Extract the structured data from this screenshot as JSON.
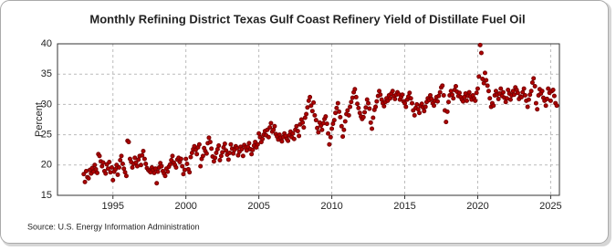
{
  "chart_data": {
    "type": "scatter",
    "title": "Monthly Refining District Texas Gulf Coast Refinery Yield of Distillate Fuel Oil",
    "y_label": "Percent",
    "source": "Source: U.S. Energy Information Administration",
    "color": "#b00000",
    "grid": true,
    "xlim": [
      1991.2,
      2025.6
    ],
    "ylim": [
      15,
      40
    ],
    "xticks": [
      1995,
      2000,
      2005,
      2010,
      2015,
      2020,
      2025
    ],
    "yticks": [
      15,
      20,
      25,
      30,
      35,
      40
    ],
    "x": [
      1993.0,
      1993.08,
      1993.17,
      1993.25,
      1993.33,
      1993.42,
      1993.5,
      1993.58,
      1993.67,
      1993.75,
      1993.83,
      1993.92,
      1994.0,
      1994.08,
      1994.17,
      1994.25,
      1994.33,
      1994.42,
      1994.5,
      1994.58,
      1994.67,
      1994.75,
      1994.83,
      1994.92,
      1995.0,
      1995.08,
      1995.17,
      1995.25,
      1995.33,
      1995.42,
      1995.5,
      1995.58,
      1995.67,
      1995.75,
      1995.83,
      1995.92,
      1996.0,
      1996.08,
      1996.17,
      1996.25,
      1996.33,
      1996.42,
      1996.5,
      1996.58,
      1996.67,
      1996.75,
      1996.83,
      1996.92,
      1997.0,
      1997.08,
      1997.17,
      1997.25,
      1997.33,
      1997.42,
      1997.5,
      1997.58,
      1997.67,
      1997.75,
      1997.83,
      1997.92,
      1998.0,
      1998.08,
      1998.17,
      1998.25,
      1998.33,
      1998.42,
      1998.5,
      1998.58,
      1998.67,
      1998.75,
      1998.83,
      1998.92,
      1999.0,
      1999.08,
      1999.17,
      1999.25,
      1999.33,
      1999.42,
      1999.5,
      1999.58,
      1999.67,
      1999.75,
      1999.83,
      1999.92,
      2000.0,
      2000.08,
      2000.17,
      2000.25,
      2000.33,
      2000.42,
      2000.5,
      2000.58,
      2000.67,
      2000.75,
      2000.83,
      2000.92,
      2001.0,
      2001.08,
      2001.17,
      2001.25,
      2001.33,
      2001.42,
      2001.5,
      2001.58,
      2001.67,
      2001.75,
      2001.83,
      2001.92,
      2002.0,
      2002.08,
      2002.17,
      2002.25,
      2002.33,
      2002.42,
      2002.5,
      2002.58,
      2002.67,
      2002.75,
      2002.83,
      2002.92,
      2003.0,
      2003.08,
      2003.17,
      2003.25,
      2003.33,
      2003.42,
      2003.5,
      2003.58,
      2003.67,
      2003.75,
      2003.83,
      2003.92,
      2004.0,
      2004.08,
      2004.17,
      2004.25,
      2004.33,
      2004.42,
      2004.5,
      2004.58,
      2004.67,
      2004.75,
      2004.83,
      2004.92,
      2005.0,
      2005.08,
      2005.17,
      2005.25,
      2005.33,
      2005.42,
      2005.5,
      2005.58,
      2005.67,
      2005.75,
      2005.83,
      2005.92,
      2006.0,
      2006.08,
      2006.17,
      2006.25,
      2006.33,
      2006.42,
      2006.5,
      2006.58,
      2006.67,
      2006.75,
      2006.83,
      2006.92,
      2007.0,
      2007.08,
      2007.17,
      2007.25,
      2007.33,
      2007.42,
      2007.5,
      2007.58,
      2007.67,
      2007.75,
      2007.83,
      2007.92,
      2008.0,
      2008.08,
      2008.17,
      2008.25,
      2008.33,
      2008.42,
      2008.5,
      2008.58,
      2008.67,
      2008.75,
      2008.83,
      2008.92,
      2009.0,
      2009.08,
      2009.17,
      2009.25,
      2009.33,
      2009.42,
      2009.5,
      2009.58,
      2009.67,
      2009.75,
      2009.83,
      2009.92,
      2010.0,
      2010.08,
      2010.17,
      2010.25,
      2010.33,
      2010.42,
      2010.5,
      2010.58,
      2010.67,
      2010.75,
      2010.83,
      2010.92,
      2011.0,
      2011.08,
      2011.17,
      2011.25,
      2011.33,
      2011.42,
      2011.5,
      2011.58,
      2011.67,
      2011.75,
      2011.83,
      2011.92,
      2012.0,
      2012.08,
      2012.17,
      2012.25,
      2012.33,
      2012.42,
      2012.5,
      2012.58,
      2012.67,
      2012.75,
      2012.83,
      2012.92,
      2013.0,
      2013.08,
      2013.17,
      2013.25,
      2013.33,
      2013.42,
      2013.5,
      2013.58,
      2013.67,
      2013.75,
      2013.83,
      2013.92,
      2014.0,
      2014.08,
      2014.17,
      2014.25,
      2014.33,
      2014.42,
      2014.5,
      2014.58,
      2014.67,
      2014.75,
      2014.83,
      2014.92,
      2015.0,
      2015.08,
      2015.17,
      2015.25,
      2015.33,
      2015.42,
      2015.5,
      2015.58,
      2015.67,
      2015.75,
      2015.83,
      2015.92,
      2016.0,
      2016.08,
      2016.17,
      2016.25,
      2016.33,
      2016.42,
      2016.5,
      2016.58,
      2016.67,
      2016.75,
      2016.83,
      2016.92,
      2017.0,
      2017.08,
      2017.17,
      2017.25,
      2017.33,
      2017.42,
      2017.5,
      2017.58,
      2017.67,
      2017.75,
      2017.83,
      2017.92,
      2018.0,
      2018.08,
      2018.17,
      2018.25,
      2018.33,
      2018.42,
      2018.5,
      2018.58,
      2018.67,
      2018.75,
      2018.83,
      2018.92,
      2019.0,
      2019.08,
      2019.17,
      2019.25,
      2019.33,
      2019.42,
      2019.5,
      2019.58,
      2019.67,
      2019.75,
      2019.83,
      2019.92,
      2020.0,
      2020.08,
      2020.17,
      2020.25,
      2020.33,
      2020.42,
      2020.5,
      2020.58,
      2020.67,
      2020.75,
      2020.83,
      2020.92,
      2021.0,
      2021.08,
      2021.17,
      2021.25,
      2021.33,
      2021.42,
      2021.5,
      2021.58,
      2021.67,
      2021.75,
      2021.83,
      2021.92,
      2022.0,
      2022.08,
      2022.17,
      2022.25,
      2022.33,
      2022.42,
      2022.5,
      2022.58,
      2022.67,
      2022.75,
      2022.83,
      2022.92,
      2023.0,
      2023.08,
      2023.17,
      2023.25,
      2023.33,
      2023.42,
      2023.5,
      2023.58,
      2023.67,
      2023.75,
      2023.83,
      2023.92,
      2024.0,
      2024.08,
      2024.17,
      2024.25,
      2024.33,
      2024.42,
      2024.5,
      2024.58,
      2024.67,
      2024.75,
      2024.83,
      2024.92,
      2025.0,
      2025.08,
      2025.17,
      2025.25,
      2025.33,
      2025.42
    ],
    "values": [
      18.5,
      17.2,
      19.0,
      18.0,
      17.8,
      19.2,
      18.6,
      19.5,
      18.9,
      20.0,
      19.3,
      18.7,
      21.8,
      21.5,
      20.6,
      19.8,
      20.4,
      19.0,
      18.6,
      20.1,
      19.4,
      20.5,
      18.8,
      19.6,
      17.5,
      18.9,
      19.3,
      20.0,
      18.4,
      19.6,
      20.8,
      21.5,
      20.2,
      19.4,
      18.8,
      18.2,
      24.0,
      23.8,
      21.0,
      20.5,
      19.6,
      20.2,
      21.2,
      20.4,
      19.8,
      20.9,
      21.5,
      20.0,
      21.6,
      22.3,
      21.0,
      20.2,
      19.5,
      19.2,
      19.0,
      18.8,
      19.6,
      19.2,
      18.7,
      19.4,
      17.0,
      18.9,
      19.6,
      20.3,
      19.8,
      19.0,
      18.6,
      18.2,
      19.4,
      18.9,
      19.7,
      20.1,
      20.8,
      21.5,
      20.4,
      20.0,
      19.6,
      20.9,
      21.2,
      20.5,
      21.0,
      19.8,
      18.5,
      19.2,
      21.0,
      20.2,
      19.3,
      18.8,
      21.3,
      22.0,
      22.6,
      23.1,
      22.5,
      21.8,
      22.9,
      23.4,
      19.8,
      21.0,
      21.5,
      22.8,
      22.3,
      21.9,
      23.6,
      24.5,
      23.8,
      22.7,
      21.4,
      20.6,
      21.2,
      22.0,
      22.6,
      23.2,
      20.8,
      21.5,
      22.1,
      22.9,
      23.5,
      22.4,
      21.7,
      20.9,
      22.0,
      23.4,
      22.7,
      21.9,
      22.5,
      23.1,
      22.8,
      21.6,
      22.2,
      23.0,
      22.6,
      21.5,
      23.3,
      22.9,
      22.4,
      23.0,
      23.6,
      22.6,
      21.8,
      22.5,
      23.2,
      23.8,
      22.9,
      23.4,
      25.2,
      24.6,
      23.8,
      24.3,
      25.0,
      25.6,
      24.9,
      25.8,
      24.6,
      26.2,
      26.9,
      25.5,
      25.8,
      26.4,
      25.1,
      24.7,
      24.2,
      25.0,
      24.5,
      23.9,
      24.6,
      25.2,
      24.8,
      24.3,
      24.0,
      24.9,
      25.5,
      24.6,
      25.2,
      24.3,
      25.8,
      26.4,
      25.6,
      24.8,
      26.7,
      27.5,
      27.0,
      26.2,
      27.8,
      28.4,
      29.5,
      30.6,
      31.2,
      29.8,
      28.9,
      30.3,
      28.2,
      27.4,
      26.1,
      25.4,
      27.0,
      26.5,
      25.8,
      26.9,
      27.6,
      28.0,
      26.8,
      25.2,
      23.4,
      24.6,
      26.0,
      26.8,
      27.4,
      28.6,
      29.4,
      30.2,
      28.8,
      27.9,
      26.4,
      24.7,
      25.8,
      27.2,
      28.4,
      29.0,
      28.2,
      29.6,
      30.4,
      31.1,
      32.0,
      32.5,
      31.2,
      30.1,
      29.4,
      28.6,
      28.0,
      27.6,
      27.9,
      28.7,
      29.5,
      30.8,
      30.2,
      29.3,
      27.0,
      26.0,
      27.8,
      29.1,
      29.6,
      30.5,
      31.4,
      32.2,
      31.6,
      30.8,
      30.2,
      29.7,
      30.4,
      31.0,
      30.6,
      31.5,
      31.0,
      31.8,
      32.2,
      31.4,
      30.9,
      31.6,
      32.0,
      31.7,
      30.8,
      31.2,
      31.6,
      30.5,
      30.2,
      29.6,
      30.8,
      31.3,
      31.9,
      31.0,
      30.2,
      29.0,
      28.2,
      29.4,
      30.0,
      29.2,
      28.6,
      29.8,
      30.1,
      29.5,
      28.9,
      29.6,
      30.4,
      31.0,
      30.7,
      31.5,
      30.9,
      30.2,
      29.8,
      30.6,
      31.2,
      30.5,
      31.4,
      32.0,
      32.8,
      33.1,
      31.5,
      29.0,
      27.1,
      28.8,
      30.4,
      31.5,
      32.2,
      31.6,
      31.0,
      32.4,
      33.0,
      32.1,
      31.4,
      31.9,
      31.2,
      30.8,
      30.5,
      31.2,
      31.8,
      30.6,
      31.4,
      32.0,
      31.3,
      30.8,
      31.5,
      31.0,
      30.6,
      31.9,
      32.6,
      34.6,
      39.8,
      38.5,
      34.2,
      33.5,
      35.2,
      34.0,
      33.1,
      32.2,
      31.0,
      29.6,
      30.2,
      29.8,
      31.5,
      32.2,
      31.6,
      30.9,
      31.8,
      32.6,
      31.4,
      32.0,
      31.1,
      30.4,
      31.0,
      32.4,
      31.8,
      30.8,
      31.5,
      32.2,
      31.6,
      32.8,
      32.4,
      31.9,
      30.9,
      31.3,
      31.2,
      32.0,
      32.6,
      31.5,
      30.6,
      29.6,
      30.8,
      31.6,
      32.2,
      33.6,
      34.3,
      33.0,
      30.2,
      29.2,
      31.5,
      32.5,
      31.8,
      32.2,
      31.1,
      30.6,
      29.8,
      30.9,
      32.6,
      31.9,
      30.6,
      32.2,
      32.4,
      31.4,
      30.2,
      29.8
    ]
  }
}
